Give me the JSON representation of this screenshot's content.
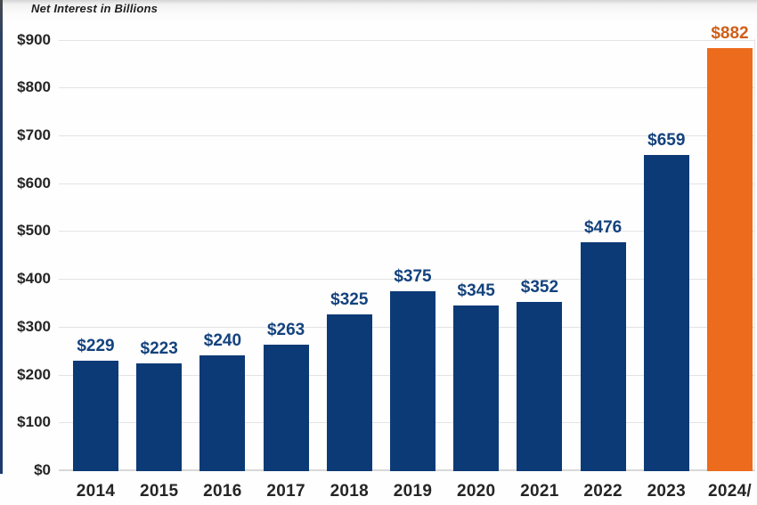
{
  "chart_data": {
    "type": "bar",
    "title": "Net Interest in Billions",
    "categories": [
      "2014",
      "2015",
      "2016",
      "2017",
      "2018",
      "2019",
      "2020",
      "2021",
      "2022",
      "2023",
      "2024/"
    ],
    "values": [
      229,
      223,
      240,
      263,
      325,
      375,
      345,
      352,
      476,
      659,
      882
    ],
    "value_labels": [
      "$229",
      "$223",
      "$240",
      "$263",
      "$325",
      "$375",
      "$345",
      "$352",
      "$476",
      "$659",
      "$882"
    ],
    "highlight_index": 10,
    "y_ticks": [
      {
        "value": 900,
        "label": "$900"
      },
      {
        "value": 800,
        "label": "$800"
      },
      {
        "value": 700,
        "label": "$700"
      },
      {
        "value": 600,
        "label": "$600"
      },
      {
        "value": 500,
        "label": "$500"
      },
      {
        "value": 400,
        "label": "$400"
      },
      {
        "value": 300,
        "label": "$300"
      },
      {
        "value": 200,
        "label": "$200"
      },
      {
        "value": 100,
        "label": "$100"
      },
      {
        "value": 0,
        "label": "$0"
      }
    ],
    "ylim": [
      0,
      900
    ],
    "xlabel": "",
    "ylabel": "",
    "grid": true,
    "legend": "none",
    "colors": {
      "bar": "#0c3a76",
      "bar_highlight": "#ec6b1d",
      "value_label": "#13427d",
      "value_label_highlight": "#d05e18",
      "axis_text": "#252525",
      "gridline": "#e3e3e3",
      "axis_line": "#d8d8d8",
      "background": "#ffffff"
    }
  }
}
